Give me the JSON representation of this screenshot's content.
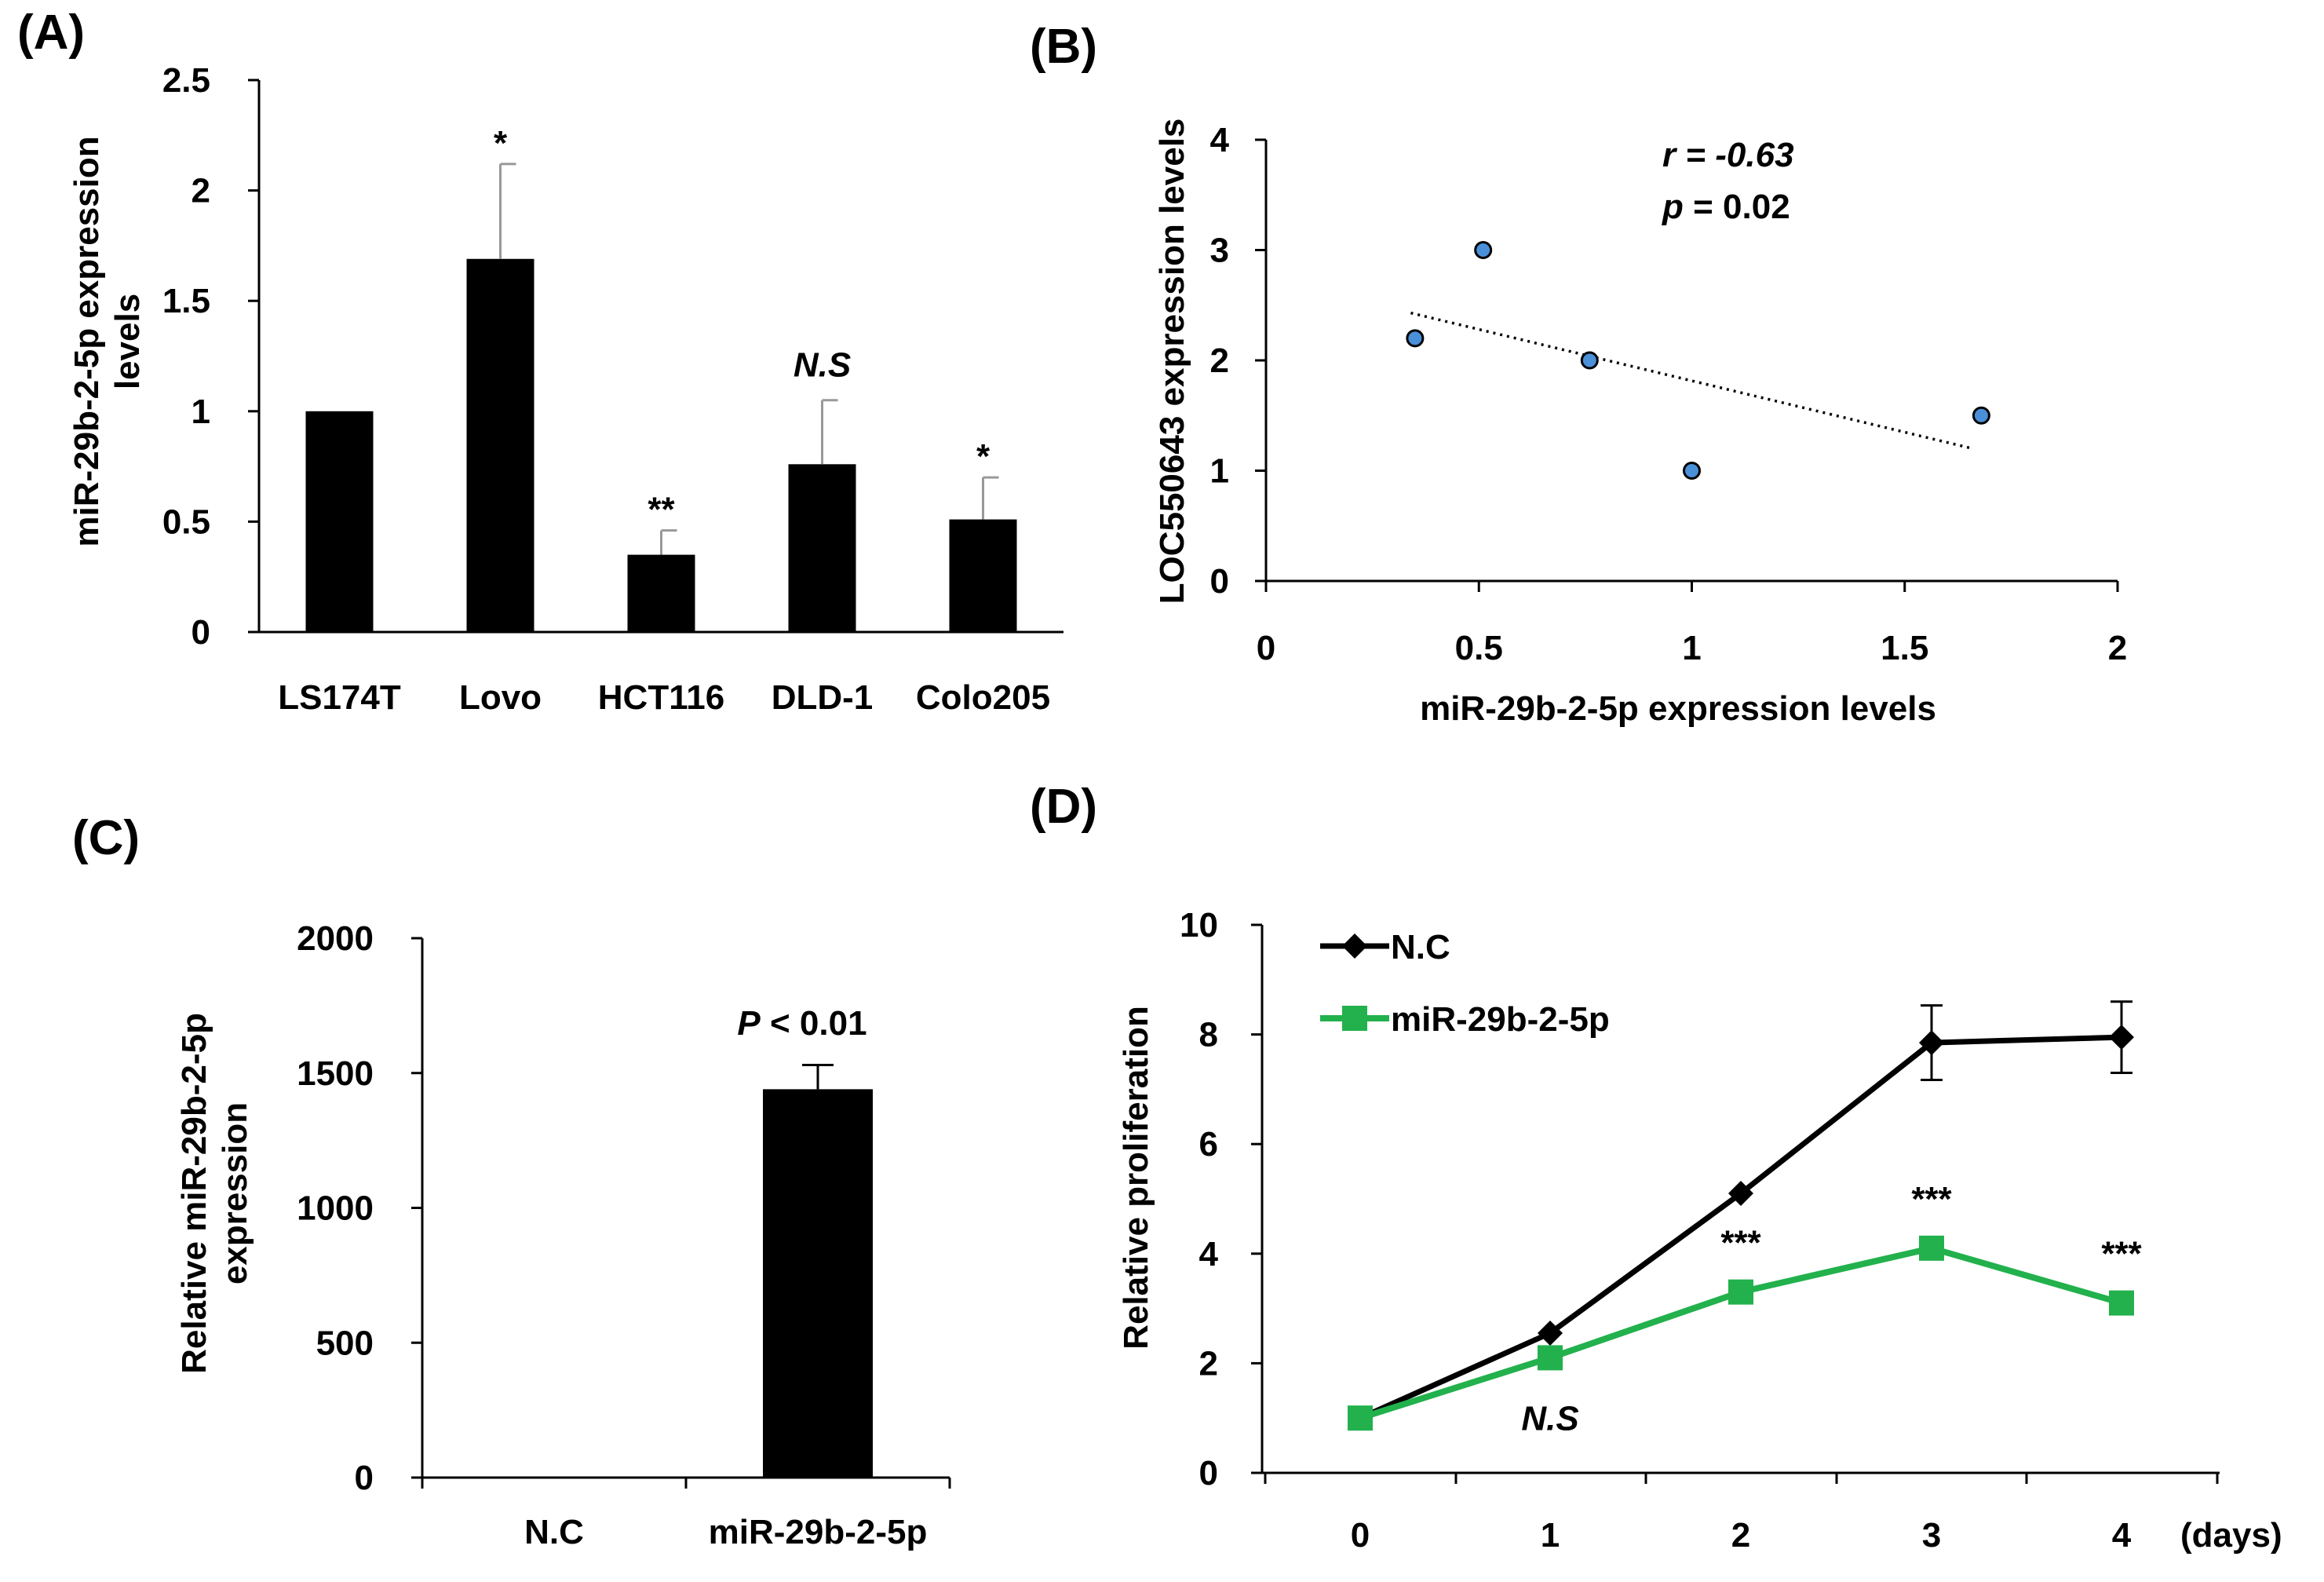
{
  "chart_data": [
    {
      "panel": "(A)",
      "type": "bar",
      "ylabel_line1": "miR-29b-2-5p expression",
      "ylabel_line2": "levels",
      "categories": [
        "LS174T",
        "Lovo",
        "HCT116",
        "DLD-1",
        "Colo205"
      ],
      "values": [
        1.0,
        1.69,
        0.35,
        0.76,
        0.51
      ],
      "errors": [
        0,
        0.43,
        0.11,
        0.29,
        0.19
      ],
      "annotations": [
        "",
        "*",
        "**",
        "N.S",
        "*"
      ],
      "ylim": [
        0,
        2.5
      ],
      "yticks": [
        "0",
        "0.5",
        "1",
        "1.5",
        "2",
        "2.5"
      ]
    },
    {
      "panel": "(B)",
      "type": "scatter",
      "xlabel": "miR-29b-2-5p expression levels",
      "ylabel": "LOC550643 expression levels",
      "points": [
        [
          0.35,
          2.2
        ],
        [
          0.51,
          3.0
        ],
        [
          0.76,
          2.0
        ],
        [
          1.0,
          1.0
        ],
        [
          1.68,
          1.5
        ]
      ],
      "trendline": [
        [
          0.34,
          2.43
        ],
        [
          1.66,
          1.2
        ]
      ],
      "xlim": [
        0,
        2
      ],
      "ylim": [
        0,
        4
      ],
      "xticks": [
        "0",
        "0.5",
        "1",
        "1.5",
        "2"
      ],
      "yticks": [
        "0",
        "1",
        "2",
        "3",
        "4"
      ],
      "stat_r_label": "r = -0.63",
      "stat_p_symbol": "p",
      "stat_p_value": " = 0.02",
      "point_color": "#4a90d9"
    },
    {
      "panel": "(C)",
      "type": "bar",
      "ylabel_line1": "Relative miR-29b-2-5p",
      "ylabel_line2": "expression",
      "categories": [
        "N.C",
        "miR-29b-2-5p"
      ],
      "values": [
        1,
        1440
      ],
      "errors": [
        0,
        90
      ],
      "annotation_symbol": "P",
      "annotation_rest": " < 0.01",
      "ylim": [
        0,
        2000
      ],
      "yticks": [
        "0",
        "500",
        "1000",
        "1500",
        "2000"
      ]
    },
    {
      "panel": "(D)",
      "type": "line",
      "ylabel": "Relative proliferation",
      "x": [
        0,
        1,
        2,
        3,
        4
      ],
      "xticks": [
        "0",
        "1",
        "2",
        "3",
        "4"
      ],
      "xunit": "(days)",
      "ylim": [
        0,
        10
      ],
      "yticks": [
        "0",
        "2",
        "4",
        "6",
        "8",
        "10"
      ],
      "series": [
        {
          "name": "N.C",
          "values": [
            1.0,
            2.55,
            5.1,
            7.85,
            7.95
          ],
          "errors": [
            0,
            0,
            0,
            0.68,
            0.65
          ],
          "color": "#000000",
          "marker": "diamond"
        },
        {
          "name": "miR-29b-2-5p",
          "values": [
            1.0,
            2.1,
            3.3,
            4.1,
            3.1
          ],
          "errors": [
            0,
            0,
            0,
            0,
            0
          ],
          "color": "#22b14c",
          "marker": "square"
        }
      ],
      "annotations": [
        "",
        "N.S",
        "***",
        "***",
        "***"
      ]
    }
  ]
}
